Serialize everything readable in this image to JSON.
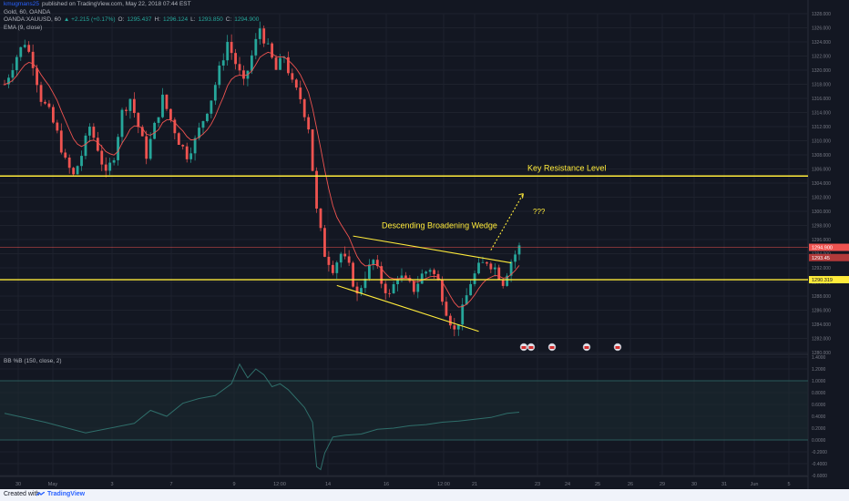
{
  "header": {
    "publisher_user": "kmugmans25",
    "publisher_text": "published on TradingView.com, May 22, 2018 07:44 EST",
    "symbol_line": "Gold, 60, OANDA",
    "ticker": "OANDA:XAUUSD, 60",
    "change": "▲ +2.215 (+0.17%)",
    "o_label": "O:",
    "o_value": "1295.437",
    "h_label": "H:",
    "h_value": "1296.124",
    "l_label": "L:",
    "l_value": "1293.850",
    "c_label": "C:",
    "c_value": "1294.900",
    "ema_label": "EMA (9, close)",
    "bb_label": "BB %B (150, close, 2)"
  },
  "annotations": {
    "resistance_label": "Key Resistance Level",
    "wedge_label": "Descending Broadening Wedge",
    "question": "???"
  },
  "price_tags": {
    "last": "1294.900",
    "ema": "1293.45",
    "support": "1290.319"
  },
  "footer": {
    "created_with": "Created with",
    "brand": "TradingView"
  },
  "colors": {
    "background": "#131722",
    "up": "#26a69a",
    "down": "#ef5350",
    "ema": "#ef5350",
    "annotation": "#ffeb3b",
    "last_price_line": "#ef5350",
    "bb_line": "#2f6e6a"
  },
  "chart_data": [
    {
      "type": "candlestick",
      "y_ticks": [
        "1280.000",
        "1282.000",
        "1284.000",
        "1286.000",
        "1288.000",
        "1290.000",
        "1292.000",
        "1294.000",
        "1296.000",
        "1298.000",
        "1300.000",
        "1302.000",
        "1304.000",
        "1306.000",
        "1308.000",
        "1310.000",
        "1312.000",
        "1314.000",
        "1316.000",
        "1318.000",
        "1320.000",
        "1322.000",
        "1324.000",
        "1326.000",
        "1328.000"
      ],
      "ylim": [
        1280,
        1328
      ],
      "x_ticks": [
        "30",
        "May",
        "3",
        "7",
        "9",
        "12:00",
        "14",
        "16",
        "12:00",
        "21",
        "23",
        "24",
        "25",
        "26",
        "29",
        "30",
        "31",
        "Jun",
        "5"
      ],
      "price_path": [
        [
          0,
          1318
        ],
        [
          3,
          1322
        ],
        [
          5,
          1324
        ],
        [
          7,
          1321
        ],
        [
          9,
          1316
        ],
        [
          11,
          1314
        ],
        [
          13,
          1311
        ],
        [
          15,
          1307
        ],
        [
          17,
          1305
        ],
        [
          19,
          1308
        ],
        [
          21,
          1312
        ],
        [
          23,
          1309
        ],
        [
          25,
          1305
        ],
        [
          27,
          1308
        ],
        [
          29,
          1314
        ],
        [
          31,
          1316
        ],
        [
          33,
          1312
        ],
        [
          35,
          1308
        ],
        [
          37,
          1312
        ],
        [
          39,
          1316
        ],
        [
          41,
          1313
        ],
        [
          43,
          1310
        ],
        [
          45,
          1308
        ],
        [
          47,
          1310
        ],
        [
          49,
          1313
        ],
        [
          51,
          1316
        ],
        [
          53,
          1320
        ],
        [
          55,
          1324
        ],
        [
          57,
          1321
        ],
        [
          59,
          1318
        ],
        [
          61,
          1322
        ],
        [
          63,
          1326
        ],
        [
          65,
          1323
        ],
        [
          67,
          1320
        ],
        [
          69,
          1322
        ],
        [
          71,
          1318
        ],
        [
          73,
          1316
        ],
        [
          75,
          1312
        ],
        [
          77,
          1300
        ],
        [
          79,
          1294
        ],
        [
          81,
          1292
        ],
        [
          83,
          1294
        ],
        [
          85,
          1292
        ],
        [
          87,
          1288
        ],
        [
          89,
          1291
        ],
        [
          91,
          1293
        ],
        [
          93,
          1290
        ],
        [
          95,
          1288
        ],
        [
          97,
          1291
        ],
        [
          99,
          1290
        ],
        [
          101,
          1289
        ],
        [
          103,
          1291
        ],
        [
          105,
          1292
        ],
        [
          107,
          1290
        ],
        [
          109,
          1286
        ],
        [
          111,
          1283
        ],
        [
          113,
          1286
        ],
        [
          115,
          1290
        ],
        [
          117,
          1292
        ],
        [
          119,
          1293
        ],
        [
          121,
          1292
        ],
        [
          123,
          1290
        ],
        [
          125,
          1293
        ],
        [
          127,
          1294.9
        ]
      ],
      "ema_period": 9,
      "resistance_level": 1305,
      "support_level": 1290.319,
      "last_price": 1294.9,
      "ema_last": 1293.45,
      "wedge_upper": [
        [
          86,
          1296.5
        ],
        [
          125,
          1292.7
        ]
      ],
      "wedge_lower": [
        [
          82,
          1289.5
        ],
        [
          117,
          1283
        ]
      ],
      "projection": [
        [
          120,
          1294.5
        ],
        [
          128,
          1302.5
        ]
      ]
    },
    {
      "type": "line",
      "title": "BB %B (150, close, 2)",
      "y_ticks": [
        "-0.6000",
        "-0.4000",
        "-0.2000",
        "0.0000",
        "0.2000",
        "0.4000",
        "0.6000",
        "0.8000",
        "1.0000",
        "1.2000",
        "1.4000"
      ],
      "ylim": [
        -0.6,
        1.4
      ],
      "band_levels": [
        0,
        1
      ],
      "values": [
        [
          0,
          0.45
        ],
        [
          10,
          0.3
        ],
        [
          20,
          0.12
        ],
        [
          26,
          0.2
        ],
        [
          32,
          0.28
        ],
        [
          36,
          0.5
        ],
        [
          40,
          0.4
        ],
        [
          44,
          0.62
        ],
        [
          48,
          0.7
        ],
        [
          52,
          0.75
        ],
        [
          56,
          0.95
        ],
        [
          58,
          1.28
        ],
        [
          60,
          1.05
        ],
        [
          62,
          1.2
        ],
        [
          64,
          1.1
        ],
        [
          66,
          0.9
        ],
        [
          68,
          0.95
        ],
        [
          70,
          0.85
        ],
        [
          72,
          0.7
        ],
        [
          74,
          0.55
        ],
        [
          76,
          0.3
        ],
        [
          77,
          -0.45
        ],
        [
          78,
          -0.5
        ],
        [
          79,
          -0.22
        ],
        [
          81,
          0.05
        ],
        [
          84,
          0.08
        ],
        [
          88,
          0.1
        ],
        [
          92,
          0.18
        ],
        [
          96,
          0.2
        ],
        [
          100,
          0.24
        ],
        [
          104,
          0.26
        ],
        [
          108,
          0.3
        ],
        [
          112,
          0.32
        ],
        [
          116,
          0.35
        ],
        [
          120,
          0.38
        ],
        [
          124,
          0.45
        ],
        [
          127,
          0.47
        ]
      ]
    }
  ]
}
